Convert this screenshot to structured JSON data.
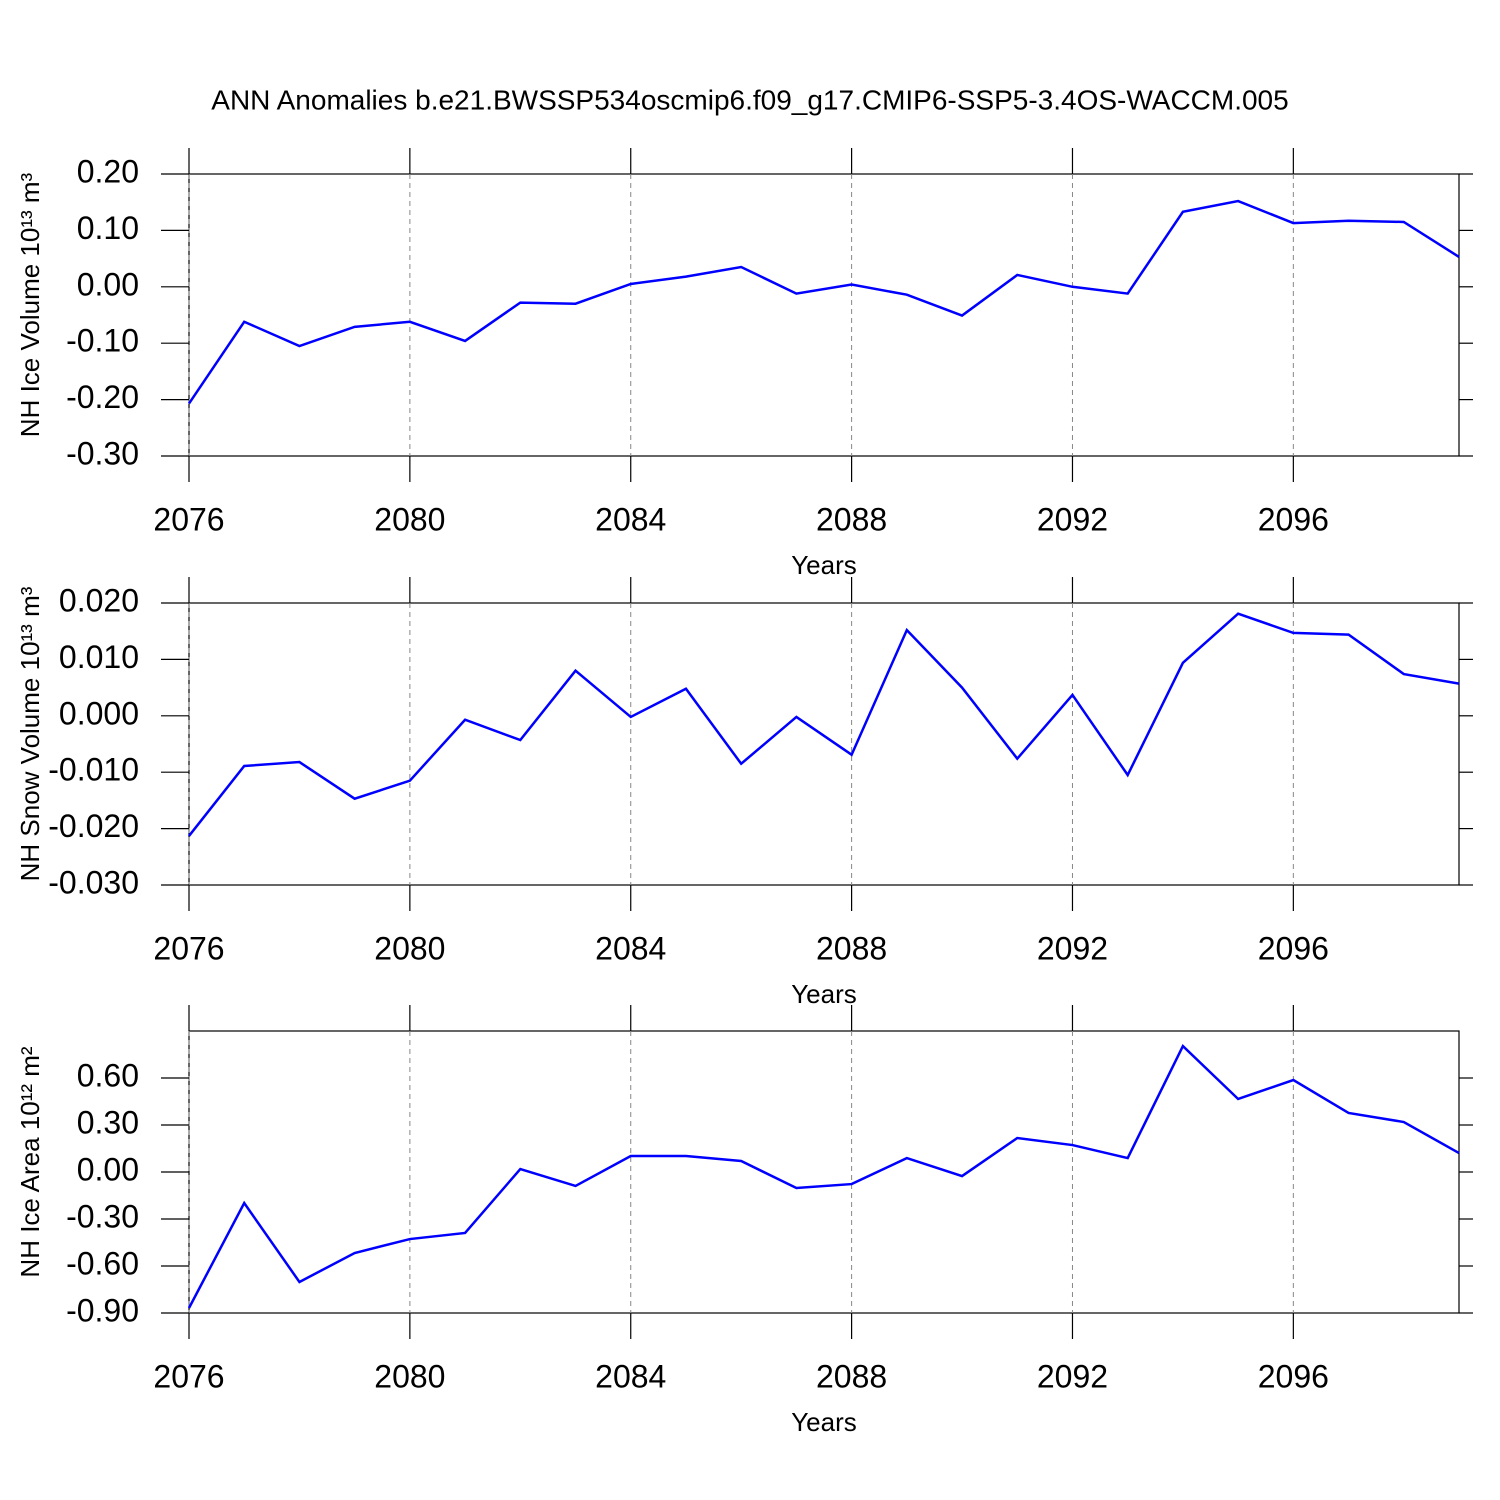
{
  "title": "ANN Anomalies b.e21.BWSSP534oscmip6.f09_g17.CMIP6-SSP5-3.4OS-WACCM.005",
  "chart_data": [
    {
      "type": "line",
      "ylabel": "NH Ice Volume 10¹³ m³",
      "xlabel": "Years",
      "x": [
        2076,
        2077,
        2078,
        2079,
        2080,
        2081,
        2082,
        2083,
        2084,
        2085,
        2086,
        2087,
        2088,
        2089,
        2090,
        2091,
        2092,
        2093,
        2094,
        2095,
        2096,
        2097,
        2098,
        2099
      ],
      "values": [
        -0.207,
        -0.062,
        -0.105,
        -0.071,
        -0.062,
        -0.096,
        -0.028,
        -0.03,
        0.005,
        0.018,
        0.035,
        -0.012,
        0.004,
        -0.014,
        -0.051,
        0.021,
        0.0,
        -0.012,
        0.133,
        0.152,
        0.113,
        0.117,
        0.115,
        0.053
      ],
      "color": "#0000ff",
      "xlim": [
        2076,
        2099
      ],
      "xticks": [
        2076,
        2080,
        2084,
        2088,
        2092,
        2096
      ],
      "ylim": [
        -0.3,
        0.2
      ],
      "yticks": [
        {
          "value": -0.3,
          "label": "-0.30"
        },
        {
          "value": -0.2,
          "label": "-0.20"
        },
        {
          "value": -0.1,
          "label": "-0.10"
        },
        {
          "value": 0,
          "label": "0.00"
        },
        {
          "value": 0.1,
          "label": "0.10"
        },
        {
          "value": 0.2,
          "label": "0.20"
        }
      ],
      "grid": true
    },
    {
      "type": "line",
      "ylabel": "NH Snow Volume 10¹³ m³",
      "xlabel": "Years",
      "x": [
        2076,
        2077,
        2078,
        2079,
        2080,
        2081,
        2082,
        2083,
        2084,
        2085,
        2086,
        2087,
        2088,
        2089,
        2090,
        2091,
        2092,
        2093,
        2094,
        2095,
        2096,
        2097,
        2098,
        2099
      ],
      "values": [
        -0.0213,
        -0.0089,
        -0.0082,
        -0.0147,
        -0.0115,
        -0.0007,
        -0.0043,
        0.008,
        -0.0002,
        0.0048,
        -0.0085,
        -0.0002,
        -0.0069,
        0.0152,
        0.005,
        -0.0076,
        0.0037,
        -0.0105,
        0.0094,
        0.0181,
        0.0147,
        0.0144,
        0.0074,
        0.0057
      ],
      "color": "#0000ff",
      "xlim": [
        2076,
        2099
      ],
      "xticks": [
        2076,
        2080,
        2084,
        2088,
        2092,
        2096
      ],
      "ylim": [
        -0.03,
        0.02
      ],
      "yticks": [
        {
          "value": -0.03,
          "label": "-0.030"
        },
        {
          "value": -0.02,
          "label": "-0.020"
        },
        {
          "value": -0.01,
          "label": "-0.010"
        },
        {
          "value": 0,
          "label": "0.000"
        },
        {
          "value": 0.01,
          "label": "0.010"
        },
        {
          "value": 0.02,
          "label": "0.020"
        }
      ],
      "grid": true
    },
    {
      "type": "line",
      "ylabel": "NH Ice Area 10¹² m²",
      "xlabel": "Years",
      "x": [
        2076,
        2077,
        2078,
        2079,
        2080,
        2081,
        2082,
        2083,
        2084,
        2085,
        2086,
        2087,
        2088,
        2089,
        2090,
        2091,
        2092,
        2093,
        2094,
        2095,
        2096,
        2097,
        2098,
        2099
      ],
      "values": [
        -0.868,
        -0.198,
        -0.702,
        -0.517,
        -0.428,
        -0.389,
        0.019,
        -0.089,
        0.102,
        0.102,
        0.07,
        -0.102,
        -0.077,
        0.089,
        -0.026,
        0.217,
        0.172,
        0.089,
        0.804,
        0.466,
        0.587,
        0.377,
        0.319,
        0.121
      ],
      "color": "#0000ff",
      "xlim": [
        2076,
        2099
      ],
      "xticks": [
        2076,
        2080,
        2084,
        2088,
        2092,
        2096
      ],
      "ylim": [
        -0.9,
        0.9
      ],
      "yticks": [
        {
          "value": -0.9,
          "label": "-0.90"
        },
        {
          "value": -0.6,
          "label": "-0.60"
        },
        {
          "value": -0.3,
          "label": "-0.30"
        },
        {
          "value": 0,
          "label": "0.00"
        },
        {
          "value": 0.3,
          "label": "0.30"
        },
        {
          "value": 0.6,
          "label": "0.60"
        }
      ],
      "grid": true
    }
  ]
}
